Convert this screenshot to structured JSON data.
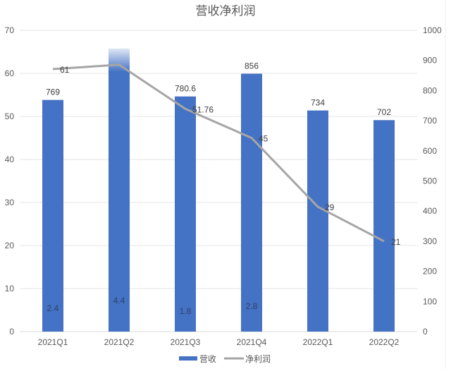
{
  "chart_data": {
    "type": "bar+line",
    "title": "营收净利润",
    "categories": [
      "2021Q1",
      "2021Q2",
      "2021Q3",
      "2021Q4",
      "2022Q1",
      "2022Q2"
    ],
    "series": [
      {
        "name": "营收",
        "type": "bar",
        "axis": "right",
        "color": "#4472C4",
        "values": [
          769,
          940,
          780.6,
          856,
          734,
          702
        ],
        "labels": [
          "769",
          "",
          "780.6",
          "856",
          "734",
          "702"
        ]
      },
      {
        "name": "净利润",
        "type": "line",
        "axis": "left",
        "color": "#A5A5A5",
        "values": [
          61,
          62,
          51.76,
          45,
          29,
          21
        ],
        "labels": [
          "61",
          "",
          "51.76",
          "45",
          "29",
          "21"
        ]
      }
    ],
    "inner_labels": [
      "2.4",
      "4.4",
      "1.8",
      "2.8",
      "",
      ""
    ],
    "left_axis": {
      "min": 0,
      "max": 70,
      "step": 10,
      "ticks": [
        "0",
        "10",
        "20",
        "30",
        "40",
        "50",
        "60",
        "70"
      ]
    },
    "right_axis": {
      "min": 0,
      "max": 1000,
      "step": 100,
      "ticks": [
        "0",
        "100",
        "200",
        "300",
        "400",
        "500",
        "600",
        "700",
        "800",
        "900",
        "1000"
      ]
    },
    "legend": {
      "position": "bottom",
      "items": [
        "营收",
        "净利润"
      ]
    },
    "grid": true
  }
}
